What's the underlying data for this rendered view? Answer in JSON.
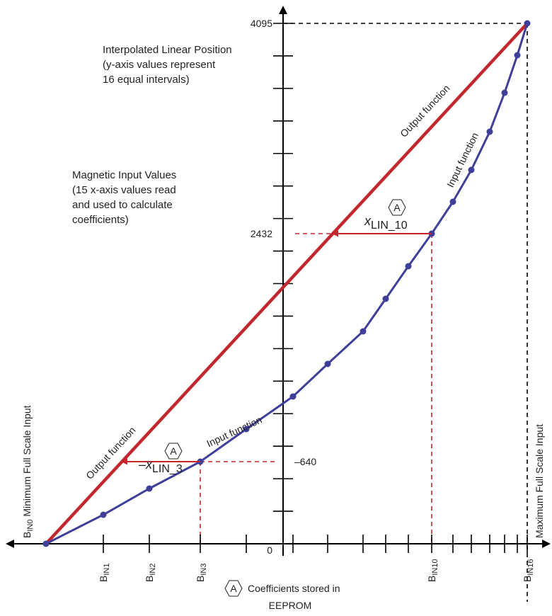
{
  "colors": {
    "axis": "#000000",
    "output": "#c1272d",
    "input": "#3f3f9a",
    "text": "#231f20"
  },
  "notes": {
    "interpolated": [
      "Interpolated Linear Position",
      "(y-axis values represent",
      "16 equal intervals)"
    ],
    "magnetic": [
      "Magnetic Input Values",
      "(15 x-axis values read",
      "and used to calculate",
      "coefficients)"
    ]
  },
  "y_labels": {
    "top": "4095",
    "mid": "2432",
    "low": "–640",
    "origin": "0"
  },
  "curve_labels": {
    "output_upper": "Output function",
    "input_upper": "Input function",
    "output_lower": "Output function",
    "input_lower": "Input function"
  },
  "coef_marker": "A",
  "coef_upper": {
    "var": "x",
    "sub": "LIN_10"
  },
  "coef_lower": {
    "neg": "–",
    "var": "x",
    "sub": "LIN_3"
  },
  "side_labels": {
    "left_b": "B",
    "left_sub": "IN0",
    "left_rest": " Minimum Full Scale Input",
    "right": "Maximum Full Scale Input"
  },
  "x_labels": [
    {
      "b": "B",
      "sub": "IN1"
    },
    {
      "b": "B",
      "sub": "IN2"
    },
    {
      "b": "B",
      "sub": "IN3"
    },
    {
      "b": "B",
      "sub": "IN10"
    },
    {
      "b": "B",
      "sub": "IN16"
    }
  ],
  "legend": {
    "marker": "A",
    "line1": "Coefficients stored in",
    "line2": "EEPROM"
  }
}
